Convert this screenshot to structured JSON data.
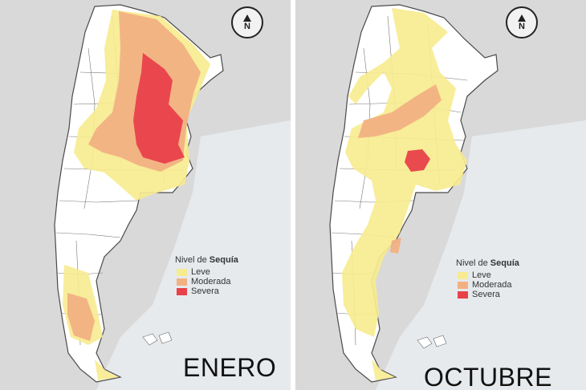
{
  "maps": [
    {
      "month": "ENERO",
      "legend": {
        "title_prefix": "Nivel de ",
        "title_bold": "Sequía",
        "items": [
          {
            "label": "Leve",
            "color": "#f7eb8f"
          },
          {
            "label": "Moderada",
            "color": "#f2b183"
          },
          {
            "label": "Severa",
            "color": "#e8414a"
          }
        ]
      },
      "north_label": "N"
    },
    {
      "month": "OCTUBRE",
      "legend": {
        "title_prefix": "Nivel de ",
        "title_bold": "Sequía",
        "items": [
          {
            "label": "Leve",
            "color": "#f7eb8f"
          },
          {
            "label": "Moderada",
            "color": "#f2b183"
          },
          {
            "label": "Severa",
            "color": "#e8414a"
          }
        ]
      },
      "north_label": "N"
    }
  ],
  "colors": {
    "background": "#d9d9d9",
    "land": "#ffffff",
    "ocean": "#e6eaed",
    "borders": "#4a4a4a",
    "leve": "#f7eb8f",
    "moderada": "#f2b183",
    "severa": "#e8414a"
  }
}
